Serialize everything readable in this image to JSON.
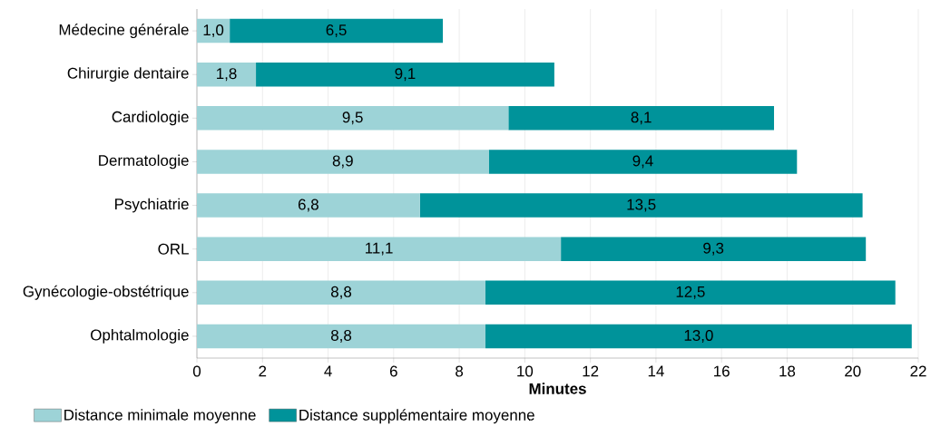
{
  "chart_data": {
    "type": "bar",
    "orientation": "horizontal",
    "stacked": true,
    "xlabel": "Minutes",
    "categories": [
      "Médecine générale",
      "Chirurgie dentaire",
      "Cardiologie",
      "Dermatologie",
      "Psychiatrie",
      "ORL",
      "Gynécologie-obstétrique",
      "Ophtalmologie"
    ],
    "series": [
      {
        "name": "Distance minimale moyenne",
        "color": "#9dd3d7",
        "values": [
          1.0,
          1.8,
          9.5,
          8.9,
          6.8,
          11.1,
          8.8,
          8.8
        ],
        "value_labels": [
          "1,0",
          "1,8",
          "9,5",
          "8,9",
          "6,8",
          "11,1",
          "8,8",
          "8,8"
        ]
      },
      {
        "name": "Distance supplémentaire moyenne",
        "color": "#00939a",
        "values": [
          6.5,
          9.1,
          8.1,
          9.4,
          13.5,
          9.3,
          12.5,
          13.0
        ],
        "value_labels": [
          "6,5",
          "9,1",
          "8,1",
          "9,4",
          "13,5",
          "9,3",
          "12,5",
          "13,0"
        ]
      }
    ],
    "xlim": [
      0,
      22
    ],
    "xticks": [
      0,
      2,
      4,
      6,
      8,
      10,
      12,
      14,
      16,
      18,
      20,
      22
    ],
    "grid": "x",
    "legend": "bottom"
  }
}
